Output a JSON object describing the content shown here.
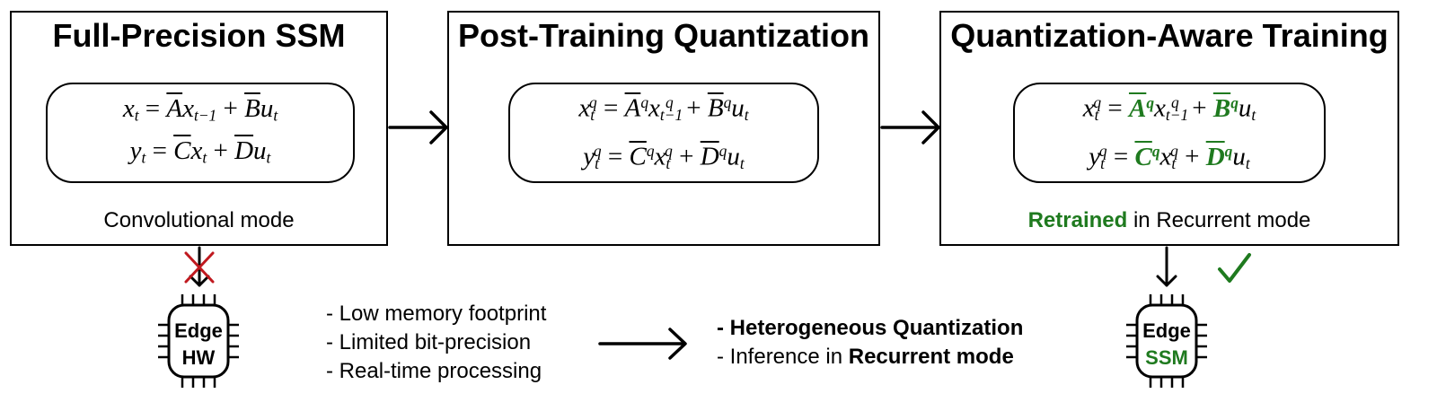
{
  "panels": [
    {
      "title": "Full-Precision SSM",
      "caption": "Convolutional mode"
    },
    {
      "title": "Post-Training Quantization"
    },
    {
      "title": "Quantization-Aware Training",
      "caption_bold": "Retrained",
      "caption_rest": " in Recurrent mode"
    }
  ],
  "chips": [
    {
      "line1": "Edge",
      "line2": "HW",
      "status": "cross"
    },
    {
      "line1": "Edge",
      "line2": "SSM",
      "status": "check"
    }
  ],
  "constraints": [
    "- Low memory footprint",
    "- Limited bit-precision",
    "- Real-time processing"
  ],
  "solutions": {
    "item1": "- Heterogeneous Quantization",
    "item2_prefix": "- Inference in ",
    "item2_bold": "Recurrent mode"
  },
  "colors": {
    "accent_green": "#1f7a1f",
    "cross_red": "#c0191f",
    "stroke": "#000000"
  },
  "icons": [
    "right-arrow-icon",
    "down-arrow-icon",
    "cross-icon",
    "checkmark-icon",
    "chip-icon"
  ]
}
